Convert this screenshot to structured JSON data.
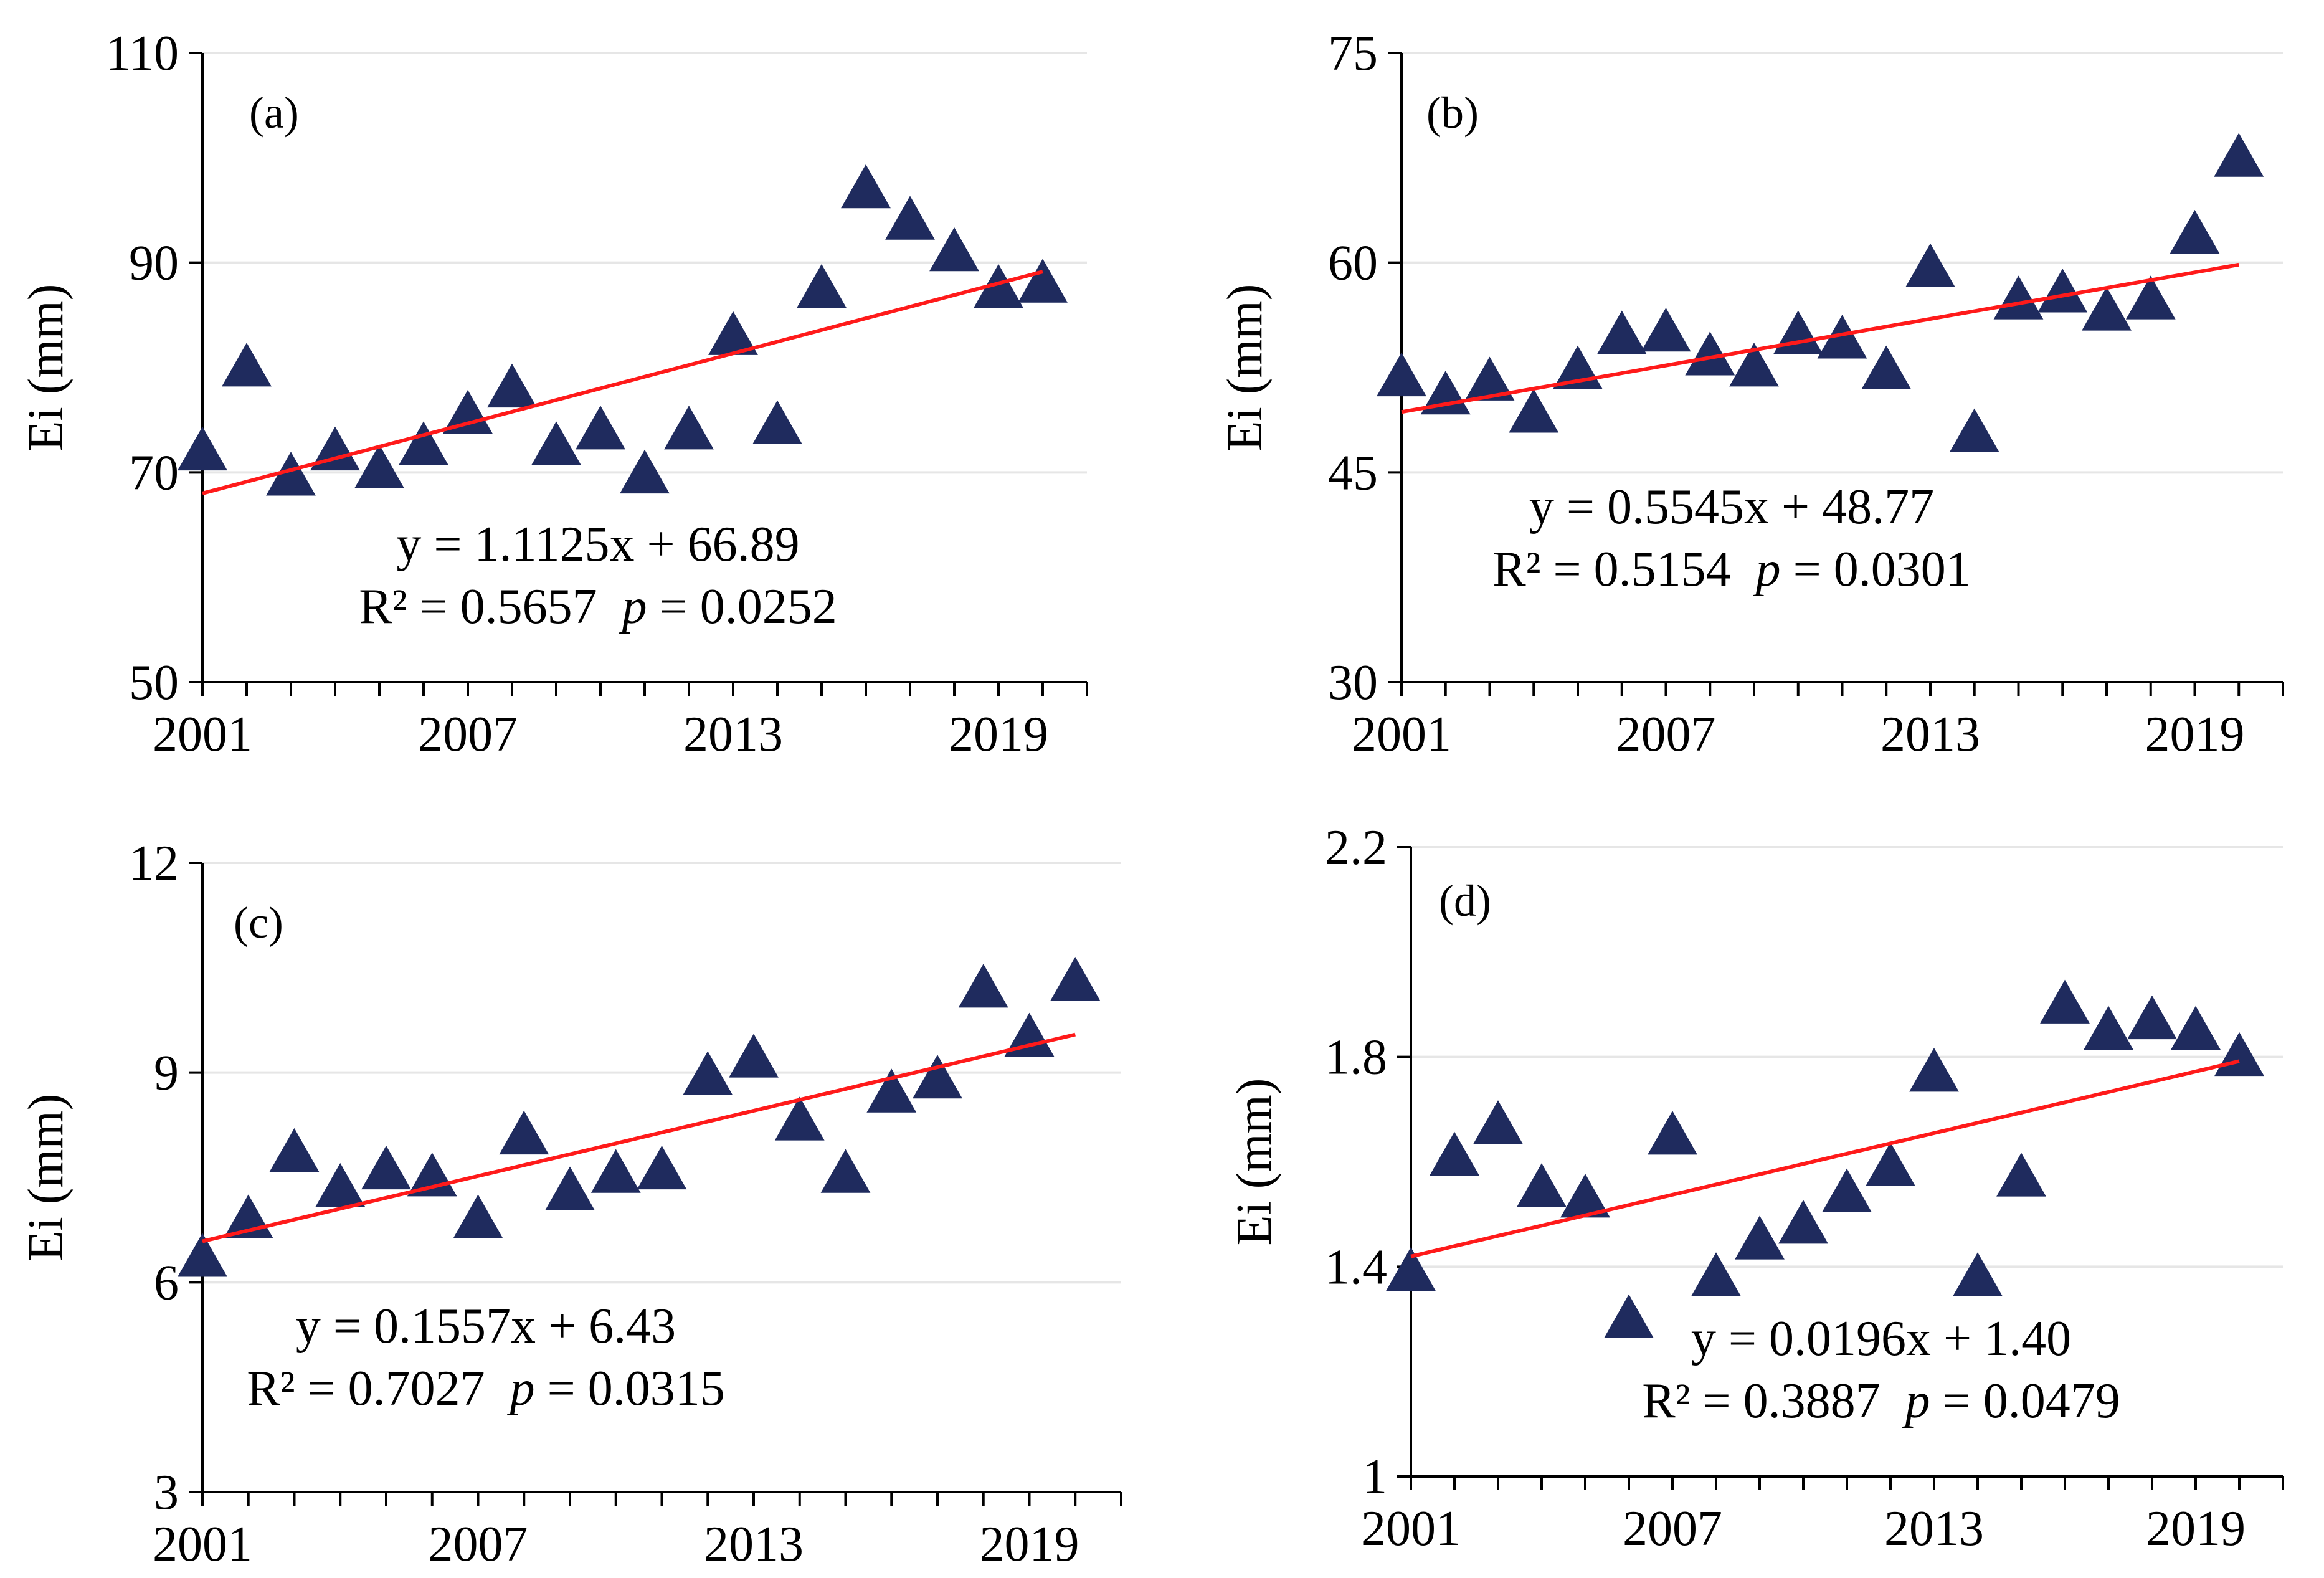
{
  "colors": {
    "marker": "#1f2b5e",
    "trend": "#ff1a1a",
    "grid": "#e6e6e6",
    "axis": "#000000"
  },
  "chart_data": [
    {
      "type": "scatter",
      "panel_label": "(a)",
      "ylabel": "Ei (mm)",
      "xlim": [
        2001,
        2021
      ],
      "xticks": [
        "2001",
        "2007",
        "2013",
        "2019"
      ],
      "ylim": [
        50,
        110
      ],
      "yticks": [
        "50",
        "70",
        "90",
        "110"
      ],
      "x": [
        2001,
        2002,
        2003,
        2004,
        2005,
        2006,
        2007,
        2008,
        2009,
        2010,
        2011,
        2012,
        2013,
        2014,
        2015,
        2016,
        2017,
        2018,
        2019,
        2020
      ],
      "y": [
        72,
        80,
        69.6,
        72,
        70.3,
        72.5,
        75.5,
        78,
        72.5,
        74,
        69.8,
        74,
        83,
        74.5,
        87.5,
        97,
        94,
        91,
        87.5,
        88
      ],
      "trend": {
        "slope": 1.1125,
        "intercept": 66.89
      },
      "equation": "y = 1.1125x + 66.89",
      "r2_text": "R² = 0.5657 ",
      "p_symbol": "p",
      "p_value_text": " = 0.0252"
    },
    {
      "type": "scatter",
      "panel_label": "(b)",
      "ylabel": "Ei (mm)",
      "xlim": [
        2001,
        2021
      ],
      "xticks": [
        "2001",
        "2007",
        "2013",
        "2019"
      ],
      "ylim": [
        30,
        75
      ],
      "yticks": [
        "30",
        "45",
        "60",
        "75"
      ],
      "x": [
        2001,
        2002,
        2003,
        2004,
        2005,
        2006,
        2007,
        2008,
        2009,
        2010,
        2011,
        2012,
        2013,
        2014,
        2015,
        2016,
        2017,
        2018,
        2019,
        2020
      ],
      "y": [
        51.8,
        50.5,
        51.5,
        49.2,
        52.3,
        54.8,
        55,
        53.3,
        52.5,
        54.8,
        54.5,
        52.3,
        59.6,
        47.8,
        57.3,
        57.8,
        56.5,
        57.3,
        62,
        67.5
      ],
      "trend": {
        "slope": 0.5545,
        "intercept": 48.77
      },
      "equation": "y = 0.5545x + 48.77",
      "r2_text": "R² = 0.5154 ",
      "p_symbol": "p",
      "p_value_text": " = 0.0301"
    },
    {
      "type": "scatter",
      "panel_label": "(c)",
      "ylabel": "Ei (mm)",
      "xlim": [
        2001,
        2021
      ],
      "xticks": [
        "2001",
        "2007",
        "2013",
        "2019"
      ],
      "ylim": [
        3,
        12
      ],
      "yticks": [
        "3",
        "6",
        "9",
        "12"
      ],
      "x": [
        2001,
        2002,
        2003,
        2004,
        2005,
        2006,
        2007,
        2008,
        2009,
        2010,
        2011,
        2012,
        2013,
        2014,
        2015,
        2016,
        2017,
        2018,
        2019,
        2020
      ],
      "y": [
        6.35,
        6.9,
        7.85,
        7.35,
        7.6,
        7.5,
        6.9,
        8.1,
        7.3,
        7.55,
        7.6,
        8.95,
        9.2,
        8.3,
        7.55,
        8.7,
        8.9,
        10.2,
        9.5,
        10.3
      ],
      "trend": {
        "slope": 0.1557,
        "intercept": 6.43
      },
      "equation": "y = 0.1557x + 6.43",
      "r2_text": "R² = 0.7027 ",
      "p_symbol": "p",
      "p_value_text": " = 0.0315"
    },
    {
      "type": "scatter",
      "panel_label": "(d)",
      "ylabel": "Ei (mm)",
      "xlim": [
        2001,
        2021
      ],
      "xticks": [
        "2001",
        "2007",
        "2013",
        "2019"
      ],
      "ylim": [
        1,
        2.2
      ],
      "yticks": [
        "1",
        "1.4",
        "1.8",
        "2.2"
      ],
      "x": [
        2001,
        2002,
        2003,
        2004,
        2005,
        2006,
        2007,
        2008,
        2009,
        2010,
        2011,
        2012,
        2013,
        2014,
        2015,
        2016,
        2017,
        2018,
        2019,
        2020
      ],
      "y": [
        1.39,
        1.61,
        1.67,
        1.55,
        1.53,
        1.3,
        1.65,
        1.38,
        1.45,
        1.48,
        1.54,
        1.59,
        1.77,
        1.38,
        1.57,
        1.9,
        1.85,
        1.87,
        1.85,
        1.8
      ],
      "trend": {
        "slope": 0.0196,
        "intercept": 1.4
      },
      "equation": "y = 0.0196x + 1.40",
      "r2_text": "R² = 0.3887 ",
      "p_symbol": "p",
      "p_value_text": " = 0.0479"
    }
  ]
}
